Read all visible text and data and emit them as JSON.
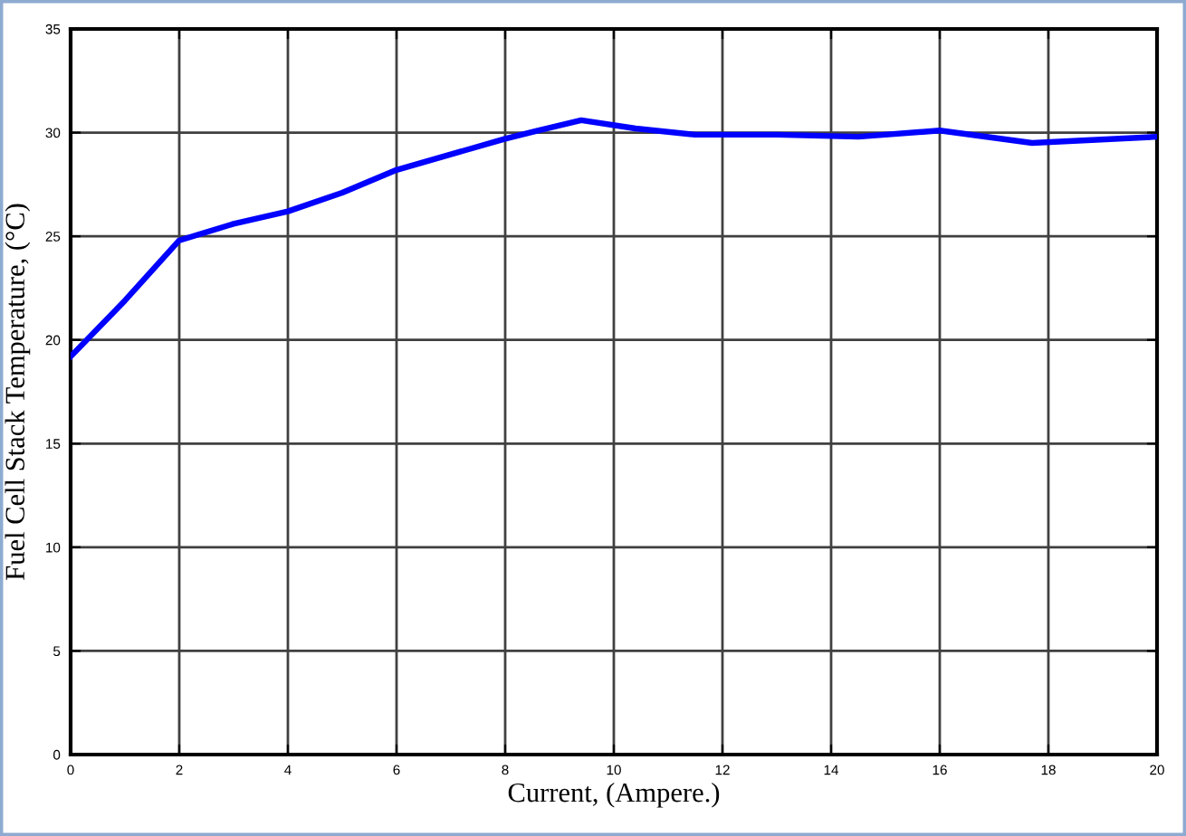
{
  "chart_data": {
    "type": "line",
    "xlabel": "Current, (Ampere.)",
    "ylabel": "Fuel Cell Stack Temperature, (°C)",
    "x": [
      0,
      1,
      2,
      3,
      4,
      5,
      6,
      8,
      8.6,
      9.4,
      10.4,
      11.5,
      13,
      14.5,
      16,
      17.7,
      20
    ],
    "series": [
      {
        "color": "#0000ff",
        "values": [
          19.2,
          21.9,
          24.8,
          25.6,
          26.2,
          27.1,
          28.2,
          29.7,
          30.1,
          30.6,
          30.2,
          29.9,
          29.9,
          29.8,
          30.1,
          29.5,
          29.8
        ]
      }
    ],
    "xlim": [
      0,
      20
    ],
    "xticks": [
      0,
      2,
      4,
      6,
      8,
      10,
      12,
      14,
      16,
      18,
      20
    ],
    "ylim": [
      0,
      35
    ],
    "yticks": [
      0,
      5,
      10,
      15,
      20,
      25,
      30,
      35
    ],
    "grid": true,
    "legend": false,
    "marker": "none",
    "line_style": "solid"
  }
}
